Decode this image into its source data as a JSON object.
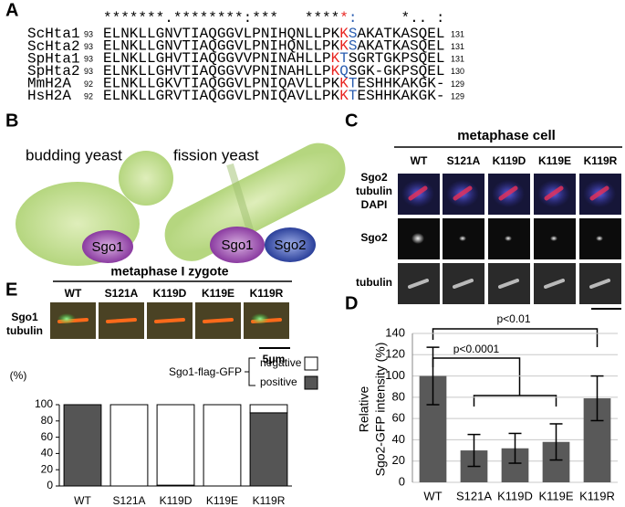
{
  "panel_labels": [
    "A",
    "B",
    "C",
    "D",
    "E"
  ],
  "alignment": {
    "segment_colors": [
      "#000000",
      "#e8231f",
      "#2a5db0",
      "#000000"
    ],
    "conservation": [
      "*******.********:***   ****",
      "*",
      ":",
      "     *.. :"
    ],
    "rows": [
      {
        "name": "ScHta1",
        "start": 93,
        "segments": [
          "ELNKLLGNVTIAQGGVLPNIHQNLLPK",
          "K",
          "S",
          "AKATKASQEL"
        ],
        "end": 131
      },
      {
        "name": "ScHta2",
        "start": 93,
        "segments": [
          "ELNKLLGNVTIAQGGVLPNIHQNLLPK",
          "K",
          "S",
          "AKATKASQEL"
        ],
        "end": 131
      },
      {
        "name": "SpHta1",
        "start": 93,
        "segments": [
          "ELNKLLGHVTIAQGGVVPNINAHLLP",
          "K",
          "T",
          "SGRTGKPSQEL"
        ],
        "end": 131
      },
      {
        "name": "SpHta2",
        "start": 93,
        "segments": [
          "ELNKLLGHVTIAQGGVVPNINAHLLP",
          "K",
          "Q",
          "SGK-GKPSQEL"
        ],
        "end": 130
      },
      {
        "name": "MmH2A",
        "start": 92,
        "segments": [
          "ELNKLLGKVTIAQGGVLPNIQAVLLPK",
          "K",
          "T",
          "ESHHKAKGK-"
        ],
        "end": 129
      },
      {
        "name": "HsH2A",
        "start": 92,
        "segments": [
          "ELNKLLGRVTIAQGGVLPNIQAVLLPK",
          "K",
          "T",
          "ESHHKAKGK-"
        ],
        "end": 129
      }
    ]
  },
  "panel_b": {
    "budding_title": "budding yeast",
    "fission_title": "fission yeast",
    "budding_protein": "Sgo1",
    "fission_proteins": [
      "Sgo1",
      "Sgo2"
    ]
  },
  "panel_c": {
    "title": "metaphase cell",
    "columns": [
      "WT",
      "S121A",
      "K119D",
      "K119E",
      "K119R"
    ],
    "rows": [
      [
        {
          "text": "Sgo2",
          "color": "#3cb83c"
        },
        {
          "text": "tubulin",
          "color": "#d8141c"
        },
        {
          "text": "DAPI",
          "color": "#2a3fa8"
        }
      ],
      [
        {
          "text": "Sgo2",
          "color": "#000000"
        }
      ],
      [
        {
          "text": "tubulin",
          "color": "#000000"
        }
      ]
    ]
  },
  "panel_e": {
    "title": "metaphase I zygote",
    "columns": [
      "WT",
      "S121A",
      "K119D",
      "K119E",
      "K119R"
    ],
    "channels": [
      {
        "text": "Sgo1",
        "color": "#3cb83c"
      },
      {
        "text": "tubulin",
        "color": "#d8141c"
      }
    ],
    "scale_bar": "5μm"
  },
  "chart_data": [
    {
      "type": "stacked_bar",
      "ylabel": "(%)",
      "legend_title": "Sgo1-flag-GFP",
      "categories": [
        "WT",
        "S121A",
        "K119D",
        "K119E",
        "K119R"
      ],
      "series": [
        {
          "name": "positive",
          "color": "#555555",
          "values": [
            100,
            0,
            1,
            0,
            90
          ]
        },
        {
          "name": "negative",
          "color": "#ffffff",
          "values": [
            0,
            100,
            99,
            100,
            10
          ]
        }
      ],
      "ylim": [
        0,
        100
      ],
      "yticks": [
        0,
        20,
        40,
        60,
        80,
        100
      ],
      "grid": false
    },
    {
      "type": "bar",
      "ylabel": [
        "Relative",
        "Sgo2-GFP intensity (%)"
      ],
      "categories": [
        "WT",
        "S121A",
        "K119D",
        "K119E",
        "K119R"
      ],
      "values": [
        100,
        30,
        32,
        38,
        79
      ],
      "errors": [
        27,
        15,
        14,
        17,
        21
      ],
      "color": "#595959",
      "ylim": [
        0,
        140
      ],
      "yticks": [
        0,
        20,
        40,
        60,
        80,
        100,
        120,
        140
      ],
      "grid": true,
      "annotations": [
        "p<0.0001",
        "p<0.01"
      ]
    }
  ]
}
